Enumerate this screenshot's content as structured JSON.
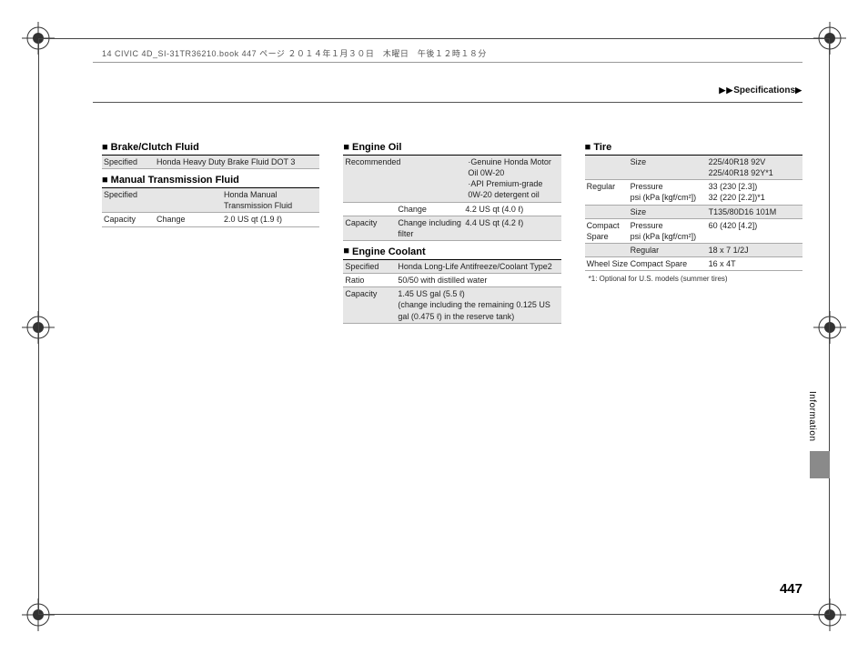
{
  "print_header": "14 CIVIC 4D_SI-31TR36210.book  447 ページ  ２０１４年１月３０日　木曜日　午後１２時１８分",
  "breadcrumb": "Specifications",
  "page_number": "447",
  "side_tab": "Information",
  "footnote": "*1: Optional for U.S. models (summer tires)",
  "colors": {
    "shade": "#e6e6e6",
    "rule": "#aaaaaa",
    "rule_heavy": "#000000",
    "tab_block": "#8a8a8a",
    "text": "#222222"
  },
  "section_marker": "■",
  "col1": {
    "brake": {
      "title": "Brake/Clutch Fluid",
      "rows": [
        {
          "shade": true,
          "k": "Specified",
          "v": "Honda Heavy Duty Brake Fluid DOT 3"
        }
      ]
    },
    "mtf": {
      "title": "Manual Transmission Fluid",
      "rows": [
        {
          "shade": true,
          "k": "Specified",
          "sub": "",
          "v": "Honda Manual Transmission Fluid"
        },
        {
          "shade": false,
          "k": "Capacity",
          "sub": "Change",
          "v": "2.0 US qt (1.9 ℓ)"
        }
      ]
    }
  },
  "col2": {
    "oil": {
      "title": "Engine Oil",
      "rows": [
        {
          "shade": true,
          "k": "Recommended",
          "sub": "",
          "v": "·Genuine Honda Motor Oil 0W-20\n·API Premium-grade 0W-20 detergent oil"
        },
        {
          "shade": false,
          "k": "",
          "sub": "Change",
          "v": "4.2 US qt (4.0 ℓ)"
        },
        {
          "shade": true,
          "k": "Capacity",
          "sub": "Change including filter",
          "v": "4.4 US qt (4.2 ℓ)"
        }
      ]
    },
    "coolant": {
      "title": "Engine Coolant",
      "rows": [
        {
          "shade": true,
          "k": "Specified",
          "v": "Honda Long-Life Antifreeze/Coolant Type2"
        },
        {
          "shade": false,
          "k": "Ratio",
          "v": "50/50 with distilled water"
        },
        {
          "shade": true,
          "k": "Capacity",
          "v": "1.45 US gal (5.5 ℓ)\n(change including the remaining 0.125 US gal (0.475 ℓ) in the reserve tank)"
        }
      ]
    }
  },
  "col3": {
    "tire": {
      "title": "Tire",
      "rows": [
        {
          "shade": true,
          "k": "",
          "sub": "Size",
          "v": "225/40R18 92V\n225/40R18 92Y*1"
        },
        {
          "shade": false,
          "k": "Regular",
          "sub": "Pressure\npsi (kPa [kgf/cm²])",
          "v": "33 (230 [2.3])\n32 (220 [2.2])*1"
        },
        {
          "shade": true,
          "k": "",
          "sub": "Size",
          "v": "T135/80D16 101M"
        },
        {
          "shade": false,
          "k": "Compact Spare",
          "sub": "Pressure\npsi (kPa [kgf/cm²])",
          "v": "60 (420 [4.2])"
        },
        {
          "shade": true,
          "k": "",
          "sub": "Regular",
          "v": "18 x 7 1/2J"
        },
        {
          "shade": false,
          "k": "Wheel Size",
          "sub": "Compact Spare",
          "v": "16 x 4T"
        }
      ]
    }
  }
}
